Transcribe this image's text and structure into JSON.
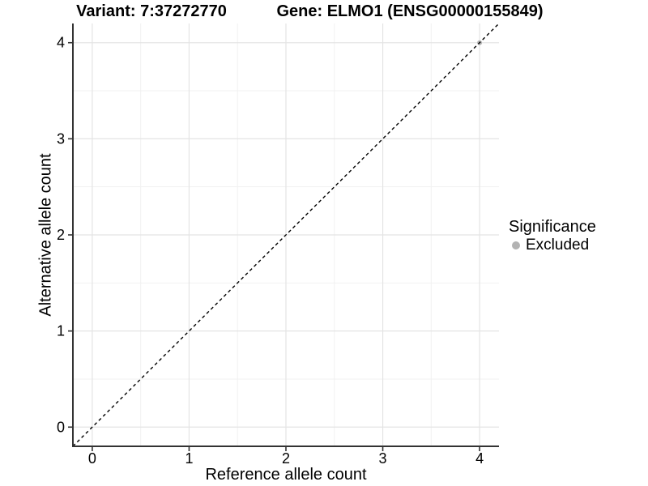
{
  "chart_data": {
    "type": "scatter",
    "title_left": "Variant: 7:37272770",
    "title_right": "Gene: ELMO1 (ENSG00000155849)",
    "xlabel": "Reference allele count",
    "ylabel": "Alternative allele count",
    "xlim": [
      -0.2,
      4.2
    ],
    "ylim": [
      -0.2,
      4.2
    ],
    "xticks": [
      0,
      1,
      2,
      3,
      4
    ],
    "yticks": [
      0,
      1,
      2,
      3,
      4
    ],
    "minor_grid_step": 0.5,
    "grid": true,
    "legend_position": "right",
    "series": [
      {
        "name": "Excluded",
        "color": "#b4b4b4",
        "points": [
          [
            4,
            4
          ]
        ]
      }
    ],
    "reference_line": {
      "kind": "identity",
      "style": "dashed",
      "color": "#000000",
      "from": [
        -0.2,
        -0.2
      ],
      "to": [
        4.2,
        4.2
      ]
    },
    "legend": {
      "title": "Significance",
      "items": [
        {
          "label": "Excluded",
          "color": "#b3b3b3"
        }
      ]
    },
    "style": {
      "background": "#ffffff",
      "grid_major_color": "#e4e4e4",
      "grid_minor_color": "#f1f1f1",
      "axis_line_color": "#333333",
      "tick_color": "#333333",
      "text_color": "#000000"
    }
  }
}
